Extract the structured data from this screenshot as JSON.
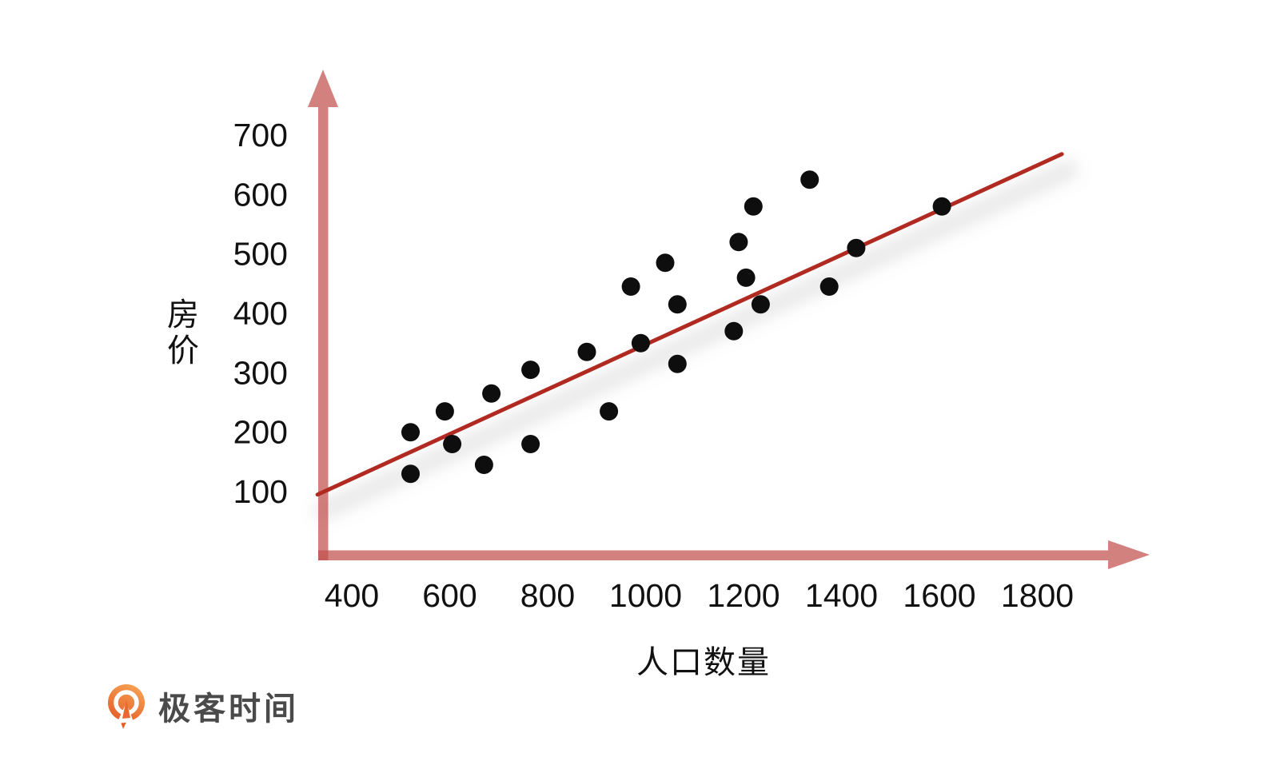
{
  "page": {
    "background": "#ffffff"
  },
  "chart_data": {
    "type": "scatter",
    "title": "",
    "xlabel": "人口数量",
    "ylabel": "房价",
    "x_ticks": [
      400,
      600,
      800,
      1000,
      1200,
      1400,
      1600,
      1800
    ],
    "y_ticks": [
      100,
      200,
      300,
      400,
      500,
      600,
      700
    ],
    "xlim": [
      330,
      1900
    ],
    "ylim": [
      60,
      780
    ],
    "grid": false,
    "legend": null,
    "axis_arrows": true,
    "points": [
      [
        520,
        200
      ],
      [
        590,
        235
      ],
      [
        605,
        180
      ],
      [
        520,
        130
      ],
      [
        670,
        145
      ],
      [
        685,
        265
      ],
      [
        765,
        305
      ],
      [
        765,
        180
      ],
      [
        880,
        335
      ],
      [
        925,
        235
      ],
      [
        970,
        445
      ],
      [
        990,
        350
      ],
      [
        1040,
        485
      ],
      [
        1065,
        415
      ],
      [
        1065,
        315
      ],
      [
        1180,
        370
      ],
      [
        1190,
        520
      ],
      [
        1205,
        460
      ],
      [
        1220,
        580
      ],
      [
        1235,
        415
      ],
      [
        1335,
        625
      ],
      [
        1375,
        445
      ],
      [
        1430,
        510
      ],
      [
        1605,
        580
      ]
    ],
    "trendline": {
      "x1": 330,
      "y1": 95,
      "x2": 1850,
      "y2": 668
    }
  },
  "colors": {
    "axis": "rgba(192,80,77,0.72)",
    "trendline": "#b12a21",
    "trendline_shadow": "rgba(130,130,130,0.16)",
    "dot": "#0e0e0e",
    "tick_text": "#111111",
    "logo_text": "#4a4a4a",
    "logo_orange_light": "#f6a254",
    "logo_orange_dark": "#e55e28"
  },
  "logo": {
    "text": "极客时间"
  }
}
